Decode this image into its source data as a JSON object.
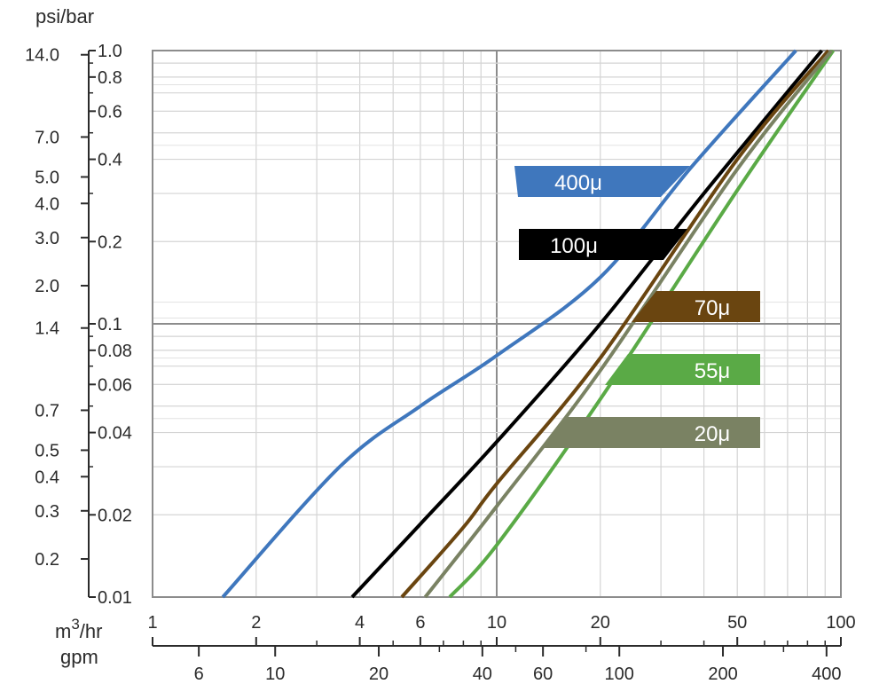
{
  "chart_data": {
    "type": "line",
    "title": "",
    "x_axis": {
      "label": "m3/hr",
      "scale": "log",
      "range": [
        1,
        100
      ],
      "tick_labels": [
        "1",
        "2",
        "4",
        "6",
        "10",
        "20",
        "50",
        "100"
      ],
      "tick_values": [
        1,
        2,
        4,
        6,
        10,
        20,
        50,
        100
      ]
    },
    "x_axis_secondary": {
      "label": "gpm",
      "tick_labels": [
        "6",
        "10",
        "20",
        "40",
        "60",
        "100",
        "200",
        "400"
      ],
      "tick_values": [
        6,
        10,
        20,
        40,
        60,
        100,
        200,
        400
      ]
    },
    "y_axis": {
      "label": "bar",
      "scale": "log",
      "range": [
        0.01,
        1.0
      ],
      "tick_labels": [
        "1.0",
        "0.8",
        "0.6",
        "0.4",
        "0.2",
        "0.1",
        "0.08",
        "0.06",
        "0.04",
        "0.02",
        "0.01"
      ],
      "tick_values": [
        1.0,
        0.8,
        0.6,
        0.4,
        0.2,
        0.1,
        0.08,
        0.06,
        0.04,
        0.02,
        0.01
      ]
    },
    "y_axis_secondary": {
      "label": "psi/bar",
      "tick_labels": [
        "14.0",
        "7.0",
        "5.0",
        "4.0",
        "3.0",
        "2.0",
        "1.4",
        "0.7",
        "0.5",
        "0.4",
        "0.3",
        "0.2"
      ],
      "tick_values": [
        14.0,
        7.0,
        5.0,
        4.0,
        3.0,
        2.0,
        1.4,
        0.7,
        0.5,
        0.4,
        0.3,
        0.2
      ]
    },
    "grid": true,
    "series": [
      {
        "name": "400μ",
        "color": "#3f77bd",
        "points": [
          [
            1.6,
            0.01
          ],
          [
            3.5,
            0.03
          ],
          [
            6.0,
            0.05
          ],
          [
            10.0,
            0.0765
          ],
          [
            20.0,
            0.148
          ],
          [
            37.2,
            0.381
          ],
          [
            74.0,
            1.0
          ]
        ]
      },
      {
        "name": "100μ",
        "color": "#000000",
        "points": [
          [
            3.8,
            0.01
          ],
          [
            6.0,
            0.0185
          ],
          [
            10.0,
            0.037
          ],
          [
            20.0,
            0.1
          ],
          [
            40.0,
            0.3
          ],
          [
            88.0,
            1.0
          ]
        ]
      },
      {
        "name": "70μ",
        "color": "#6a4510",
        "points": [
          [
            5.3,
            0.01
          ],
          [
            8.0,
            0.018
          ],
          [
            10.0,
            0.026
          ],
          [
            20.0,
            0.075
          ],
          [
            50.0,
            0.4
          ],
          [
            92.0,
            1.0
          ]
        ]
      },
      {
        "name": "55μ",
        "color": "#5aaa46",
        "points": [
          [
            7.3,
            0.01
          ],
          [
            10.0,
            0.0155
          ],
          [
            20.0,
            0.053
          ],
          [
            50.0,
            0.308
          ],
          [
            95.0,
            1.0
          ]
        ]
      },
      {
        "name": "20μ",
        "color": "#7a8263",
        "points": [
          [
            6.2,
            0.01
          ],
          [
            10.0,
            0.0215
          ],
          [
            20.0,
            0.0675
          ],
          [
            50.0,
            0.368
          ],
          [
            94.0,
            1.0
          ]
        ]
      }
    ],
    "legend_tags": [
      {
        "label": "400μ",
        "color": "#3f77bd"
      },
      {
        "label": "100μ",
        "color": "#000000"
      },
      {
        "label": "70μ",
        "color": "#6a4510"
      },
      {
        "label": "55μ",
        "color": "#5aaa46"
      },
      {
        "label": "20μ",
        "color": "#7a8263"
      }
    ]
  }
}
